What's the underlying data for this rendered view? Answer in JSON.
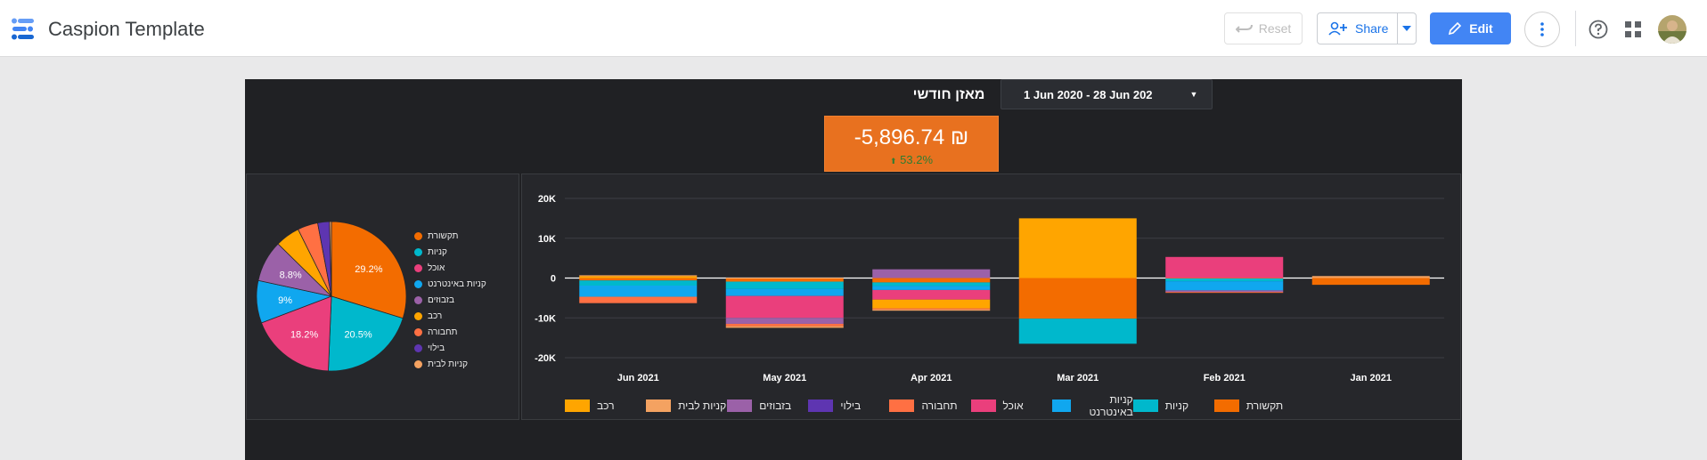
{
  "header": {
    "app_title": "Caspion Template",
    "reset_label": "Reset",
    "share_label": "Share",
    "edit_label": "Edit"
  },
  "report": {
    "title": "מאזן חודשי",
    "date_range": "1 Jun 2020 - 28 Jun 202",
    "kpi": {
      "value": "-5,896.74 ₪",
      "delta": "53.2%",
      "delta_arrow": "⬆"
    }
  },
  "colors": {
    "תקשורת": "#f36c00",
    "קניות": "#00b8cc",
    "אוכל": "#ea3f7c",
    "קניות באינטרנט": "#10a7ef",
    "בזבוזים": "#9b61a8",
    "רכב": "#ffa500",
    "תחבורה": "#ff7043",
    "בילוי": "#5e35b1",
    "קניות לבית": "#f4a261"
  },
  "chart_data": [
    {
      "type": "pie",
      "labels": [
        "תקשורת",
        "קניות",
        "אוכל",
        "קניות באינטרנט",
        "בזבוזים",
        "רכב",
        "תחבורה",
        "בילוי",
        "קניות לבית"
      ],
      "values": [
        29.2,
        20.5,
        18.2,
        9,
        8.8,
        5.2,
        4.3,
        2.5,
        0.4
      ],
      "data_labels": [
        "29.2%",
        "20.5%",
        "18.2%",
        "9%",
        "8.8%",
        "",
        "",
        "",
        ""
      ],
      "legend_position": "right"
    },
    {
      "type": "bar",
      "stacked": true,
      "categories": [
        "Jun 2021",
        "May 2021",
        "Apr 2021",
        "Mar 2021",
        "Feb 2021",
        "Jan 2021"
      ],
      "y_ticks": [
        "20K",
        "10K",
        "0",
        "-10K",
        "-20K"
      ],
      "ylim": [
        -20000,
        20000
      ],
      "grid": true,
      "legend_position": "bottom",
      "legend_order": [
        "רכב",
        "קניות לבית",
        "בזבוזים",
        "בילוי",
        "תחבורה",
        "אוכל",
        "קניות באינטרנט",
        "קניות",
        "תקשורת"
      ],
      "series": [
        {
          "name": "תקשורת",
          "values": [
            -600,
            -900,
            -1100,
            -10200,
            -100,
            -1700
          ]
        },
        {
          "name": "קניות",
          "values": [
            -1300,
            -1800,
            -900,
            -6300,
            -700,
            0
          ]
        },
        {
          "name": "קניות באינטרנט",
          "values": [
            -2800,
            -1800,
            -1000,
            0,
            -2300,
            0
          ]
        },
        {
          "name": "אוכל",
          "values": [
            0,
            -5500,
            -2400,
            0,
            5300,
            0
          ]
        },
        {
          "name": "בזבוזים",
          "values": [
            0,
            -1500,
            2200,
            0,
            -400,
            0
          ]
        },
        {
          "name": "רכב",
          "values": [
            500,
            0,
            -2200,
            15000,
            0,
            0
          ]
        },
        {
          "name": "תחבורה",
          "values": [
            -1600,
            -600,
            -300,
            0,
            -200,
            0
          ]
        },
        {
          "name": "בילוי",
          "values": [
            0,
            0,
            0,
            0,
            0,
            0
          ]
        },
        {
          "name": "קניות לבית",
          "values": [
            200,
            -400,
            -300,
            0,
            0,
            500
          ]
        }
      ]
    }
  ]
}
